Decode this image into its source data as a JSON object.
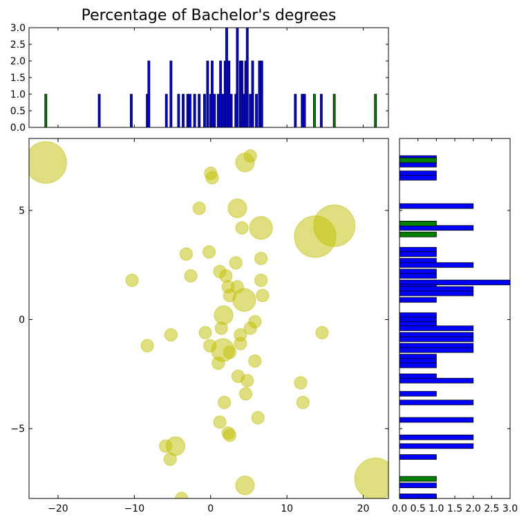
{
  "chart_data": [
    {
      "panel": "top-histogram",
      "type": "bar",
      "title": "Percentage of Bachelor's degrees",
      "xlim": [
        -23.8,
        23.3
      ],
      "ylim": [
        0,
        3.0
      ],
      "yticks": [
        "0.0",
        "0.5",
        "1.0",
        "1.5",
        "2.0",
        "2.5",
        "3.0"
      ],
      "series": [
        {
          "color": "#0000ff",
          "bars": [
            [
              -14.6,
              1
            ],
            [
              -10.4,
              1
            ],
            [
              -8.3,
              1
            ],
            [
              -8.1,
              2
            ],
            [
              -5.8,
              1
            ],
            [
              -5.2,
              2
            ],
            [
              -4.2,
              1
            ],
            [
              -3.6,
              1
            ],
            [
              -3.0,
              1
            ],
            [
              -2.7,
              1
            ],
            [
              -2.1,
              1
            ],
            [
              -1.5,
              1
            ],
            [
              -0.8,
              1
            ],
            [
              -0.4,
              2
            ],
            [
              0.0,
              1
            ],
            [
              0.2,
              2
            ],
            [
              0.5,
              1
            ],
            [
              1.0,
              1
            ],
            [
              1.3,
              2
            ],
            [
              1.6,
              1
            ],
            [
              1.9,
              2
            ],
            [
              2.1,
              3
            ],
            [
              2.4,
              2
            ],
            [
              2.7,
              1
            ],
            [
              3.3,
              1
            ],
            [
              3.5,
              3
            ],
            [
              3.9,
              2
            ],
            [
              4.1,
              2
            ],
            [
              4.3,
              1
            ],
            [
              4.6,
              2
            ],
            [
              4.8,
              3
            ],
            [
              5.2,
              1
            ],
            [
              5.5,
              2
            ],
            [
              6.0,
              1
            ],
            [
              6.4,
              2
            ],
            [
              6.7,
              2
            ],
            [
              11.1,
              1
            ],
            [
              12.0,
              1
            ],
            [
              12.3,
              1
            ],
            [
              14.5,
              1
            ]
          ]
        },
        {
          "color": "#008000",
          "bars": [
            [
              -21.6,
              1
            ],
            [
              13.6,
              1
            ],
            [
              16.2,
              1
            ],
            [
              21.6,
              1
            ]
          ]
        }
      ]
    },
    {
      "panel": "main-scatter",
      "type": "scatter",
      "color": "#bfbf00",
      "xlim": [
        -23.8,
        23.3
      ],
      "ylim": [
        -8.2,
        8.3
      ],
      "xticks": [
        -20,
        -10,
        0,
        10,
        20
      ],
      "yticks": [
        -5,
        0,
        5
      ],
      "points": [
        [
          -21.6,
          7.2,
          2
        ],
        [
          0.0,
          6.7,
          0.6
        ],
        [
          0.2,
          6.5,
          0.6
        ],
        [
          4.5,
          7.2,
          0.9
        ],
        [
          5.2,
          7.5,
          0.6
        ],
        [
          -1.5,
          5.1,
          0.6
        ],
        [
          3.5,
          5.1,
          0.9
        ],
        [
          4.1,
          4.2,
          0.6
        ],
        [
          6.6,
          4.2,
          1.1
        ],
        [
          13.7,
          3.8,
          2
        ],
        [
          16.2,
          4.3,
          2
        ],
        [
          -3.2,
          3.0,
          0.6
        ],
        [
          -0.2,
          3.1,
          0.6
        ],
        [
          3.3,
          2.6,
          0.6
        ],
        [
          6.6,
          2.8,
          0.6
        ],
        [
          -10.3,
          1.8,
          0.6
        ],
        [
          -2.6,
          2.0,
          0.6
        ],
        [
          1.2,
          2.2,
          0.6
        ],
        [
          2.0,
          2.0,
          0.6
        ],
        [
          2.3,
          1.5,
          0.6
        ],
        [
          3.5,
          1.5,
          0.6
        ],
        [
          6.6,
          1.8,
          0.6
        ],
        [
          2.5,
          1.1,
          0.6
        ],
        [
          4.4,
          0.9,
          1.1
        ],
        [
          6.8,
          1.1,
          0.6
        ],
        [
          1.7,
          0.2,
          0.9
        ],
        [
          5.8,
          -0.1,
          0.6
        ],
        [
          1.4,
          -0.4,
          0.6
        ],
        [
          5.2,
          -0.4,
          0.6
        ],
        [
          -0.7,
          -0.6,
          0.6
        ],
        [
          3.9,
          -0.7,
          0.6
        ],
        [
          -5.2,
          -0.7,
          0.6
        ],
        [
          -8.3,
          -1.2,
          0.6
        ],
        [
          -0.1,
          -1.2,
          0.6
        ],
        [
          1.6,
          -1.4,
          1.1
        ],
        [
          3.9,
          -1.1,
          0.6
        ],
        [
          2.5,
          -1.5,
          0.6
        ],
        [
          1.0,
          -2.0,
          0.6
        ],
        [
          5.8,
          -1.9,
          0.6
        ],
        [
          3.6,
          -2.6,
          0.6
        ],
        [
          4.8,
          -2.8,
          0.6
        ],
        [
          11.8,
          -2.9,
          0.6
        ],
        [
          4.6,
          -3.4,
          0.6
        ],
        [
          1.8,
          -3.8,
          0.6
        ],
        [
          12.1,
          -3.8,
          0.6
        ],
        [
          1.2,
          -4.7,
          0.6
        ],
        [
          6.2,
          -4.5,
          0.6
        ],
        [
          2.3,
          -5.2,
          0.6
        ],
        [
          2.5,
          -5.3,
          0.6
        ],
        [
          -5.9,
          -5.8,
          0.6
        ],
        [
          -4.6,
          -5.8,
          0.9
        ],
        [
          -5.3,
          -6.4,
          0.6
        ],
        [
          4.5,
          -7.6,
          0.9
        ],
        [
          -3.8,
          -8.2,
          0.6
        ],
        [
          21.6,
          -7.3,
          2
        ],
        [
          14.6,
          -0.6,
          0.6
        ]
      ]
    },
    {
      "panel": "right-histogram",
      "type": "bar",
      "orientation": "horizontal",
      "xlim": [
        0,
        3.0
      ],
      "ylim": [
        -8.2,
        8.3
      ],
      "xtick_labels": [
        "0.0",
        "0.5",
        "1.0",
        "1.5",
        "2.0",
        "2.5",
        "3.0"
      ],
      "series": [
        {
          "color": "#0000ff",
          "bars": [
            [
              7.4,
              1
            ],
            [
              7.1,
              1
            ],
            [
              6.7,
              1
            ],
            [
              6.5,
              1
            ],
            [
              5.2,
              2
            ],
            [
              4.2,
              2
            ],
            [
              3.2,
              1
            ],
            [
              3.0,
              1
            ],
            [
              2.7,
              1
            ],
            [
              2.5,
              2
            ],
            [
              2.2,
              1
            ],
            [
              2.0,
              1
            ],
            [
              1.7,
              3
            ],
            [
              1.5,
              1
            ],
            [
              1.4,
              2
            ],
            [
              1.2,
              2
            ],
            [
              0.9,
              1
            ],
            [
              0.2,
              1
            ],
            [
              0.0,
              1
            ],
            [
              -0.2,
              1
            ],
            [
              -0.4,
              2
            ],
            [
              -0.7,
              2
            ],
            [
              -0.9,
              2
            ],
            [
              -1.2,
              2
            ],
            [
              -1.4,
              2
            ],
            [
              -1.7,
              1
            ],
            [
              -1.9,
              1
            ],
            [
              -2.1,
              1
            ],
            [
              -2.6,
              1
            ],
            [
              -2.8,
              2
            ],
            [
              -3.4,
              1
            ],
            [
              -3.8,
              2
            ],
            [
              -4.6,
              2
            ],
            [
              -5.4,
              2
            ],
            [
              -5.8,
              2
            ],
            [
              -6.3,
              1
            ],
            [
              -7.6,
              1
            ],
            [
              -8.1,
              1
            ]
          ]
        },
        {
          "color": "#008000",
          "bars": [
            [
              7.3,
              1
            ],
            [
              4.4,
              1
            ],
            [
              3.9,
              1
            ],
            [
              -7.3,
              1
            ]
          ]
        }
      ]
    }
  ]
}
